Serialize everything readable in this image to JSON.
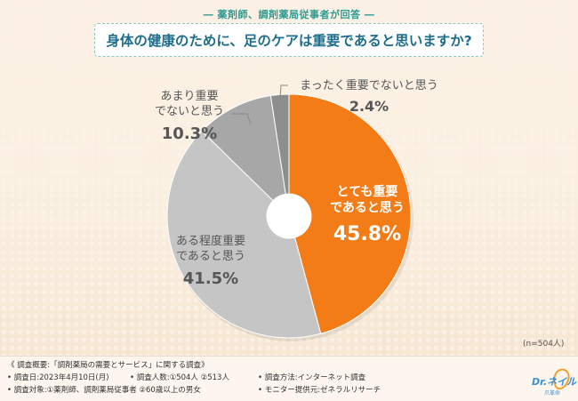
{
  "header": {
    "title": "― 薬剤師、調剤薬局従事者が回答 ―"
  },
  "question": {
    "text": "身体の健康のために、足のケアは重要であると思いますか?"
  },
  "chart_data": {
    "type": "pie",
    "donut": true,
    "slices": [
      {
        "label_lines": [
          "とても重要",
          "であると思う"
        ],
        "value": 45.8,
        "color": "#f47c16",
        "text_color": "#ffffff"
      },
      {
        "label_lines": [
          "ある程度重要",
          "であると思う"
        ],
        "value": 41.5,
        "color": "#c5c5c5",
        "text_color": "#555555"
      },
      {
        "label_lines": [
          "あまり重要",
          "でないと思う"
        ],
        "value": 10.3,
        "color": "#a7a7a7",
        "text_color": "#555555"
      },
      {
        "label_lines": [
          "まったく重要でないと思う"
        ],
        "value": 2.4,
        "color": "#8e8e8e",
        "text_color": "#555555"
      }
    ],
    "unit": "%",
    "sample": "(n=504人)"
  },
  "footer": {
    "title": "《 調査概要:「調剤薬局の需要とサービス」に関する調査》",
    "rows": [
      [
        "• 調査日:2023年4月10日(月)",
        "• 調査人数:①504人 ②513人",
        "• 調査方法:インターネット調査"
      ],
      [
        "• 調査対象:①薬剤師、調剤薬局従事者 ②60歳以上の男女",
        "• モニター提供元:ゼネラルリサーチ"
      ]
    ]
  },
  "logo": {
    "text": "Dr.ネイル",
    "sub": "爪革命"
  }
}
